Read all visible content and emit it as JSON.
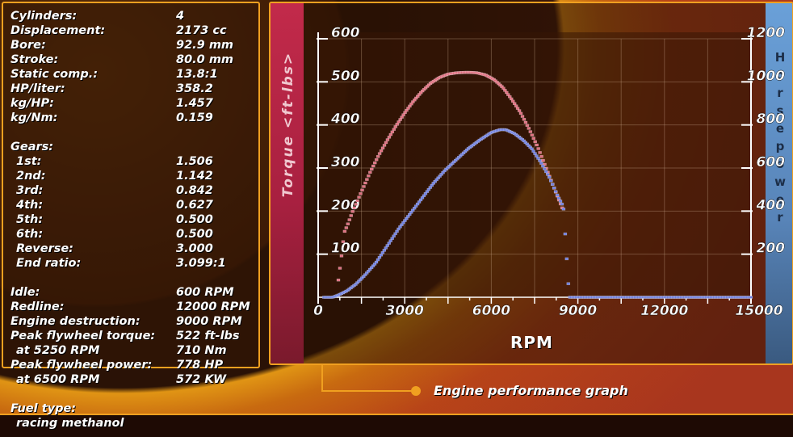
{
  "specs": [
    {
      "label": "Cylinders:",
      "value": "4"
    },
    {
      "label": "Displacement:",
      "value": "2173 cc"
    },
    {
      "label": "Bore:",
      "value": "92.9 mm"
    },
    {
      "label": "Stroke:",
      "value": "80.0 mm"
    },
    {
      "label": "Static comp.:",
      "value": "13.8:1"
    },
    {
      "label": "HP/liter:",
      "value": "358.2"
    },
    {
      "label": "kg/HP:",
      "value": "1.457"
    },
    {
      "label": "kg/Nm:",
      "value": "0.159"
    }
  ],
  "gears_label": "Gears:",
  "gears": [
    {
      "label": "1st:",
      "value": "1.506"
    },
    {
      "label": "2nd:",
      "value": "1.142"
    },
    {
      "label": "3rd:",
      "value": "0.842"
    },
    {
      "label": "4th:",
      "value": "0.627"
    },
    {
      "label": "5th:",
      "value": "0.500"
    },
    {
      "label": "6th:",
      "value": "0.500"
    },
    {
      "label": "Reverse:",
      "value": "3.000"
    },
    {
      "label": "End ratio:",
      "value": "3.099:1"
    }
  ],
  "engine": [
    {
      "label": "Idle:",
      "value": "600 RPM"
    },
    {
      "label": "Redline:",
      "value": "12000 RPM"
    },
    {
      "label": "Engine destruction:",
      "value": "9000 RPM"
    },
    {
      "label": "Peak flywheel torque:",
      "value": "522 ft-lbs"
    },
    {
      "label": "at 5250 RPM",
      "value": "710 Nm"
    },
    {
      "label": "Peak flywheel power:",
      "value": "778 HP"
    },
    {
      "label": "at 6500 RPM",
      "value": "572 KW"
    }
  ],
  "fuel": {
    "label": "Fuel type:",
    "value": "racing methanol"
  },
  "graph": {
    "left_axis_label": "Torque <ft-lbs>",
    "right_axis_label": "Horsepower",
    "x_label": "RPM",
    "caption": "Engine performance graph"
  },
  "colors": {
    "torque": "#e07080",
    "power": "#7080e0",
    "accent": "#f0a020"
  },
  "chart_data": {
    "type": "scatter",
    "title": "Engine performance graph",
    "xlabel": "RPM",
    "ylabel": "Torque <ft-lbs>",
    "y2label": "Horsepower",
    "xlim": [
      0,
      15000
    ],
    "ylim": [
      0,
      600
    ],
    "y2lim": [
      0,
      1200
    ],
    "x_ticks": [
      "0",
      "3000",
      "6000",
      "9000",
      "12000",
      "15000"
    ],
    "y_ticks": [
      "100",
      "200",
      "300",
      "400",
      "500",
      "600"
    ],
    "y2_ticks": [
      "200",
      "400",
      "600",
      "800",
      "1000",
      "1200"
    ],
    "grid": true,
    "series": [
      {
        "name": "Torque",
        "axis": "left",
        "x": [
          700,
          800,
          900,
          1000,
          1200,
          1500,
          1800,
          2100,
          2400,
          2700,
          3000,
          3300,
          3600,
          3900,
          4200,
          4500,
          4800,
          5100,
          5250,
          5500,
          5800,
          6100,
          6400,
          6700,
          7000,
          7300,
          7600,
          7900,
          8200,
          8500
        ],
        "y": [
          40,
          90,
          150,
          165,
          200,
          245,
          290,
          330,
          365,
          398,
          428,
          455,
          478,
          497,
          510,
          518,
          521,
          522,
          522,
          521,
          516,
          505,
          487,
          460,
          430,
          392,
          350,
          300,
          250,
          200
        ]
      },
      {
        "name": "Horsepower",
        "axis": "right",
        "x": [
          200,
          500,
          700,
          1000,
          1300,
          1600,
          2000,
          2400,
          2800,
          3200,
          3600,
          4000,
          4400,
          4800,
          5200,
          5600,
          6000,
          6300,
          6500,
          6800,
          7100,
          7400,
          7700,
          8000,
          8300,
          8500,
          8700,
          9500,
          11000,
          12500,
          14000,
          15000
        ],
        "y": [
          0,
          0,
          10,
          30,
          60,
          100,
          160,
          240,
          320,
          390,
          460,
          530,
          590,
          640,
          690,
          730,
          765,
          778,
          778,
          760,
          730,
          690,
          630,
          560,
          470,
          420,
          0,
          0,
          0,
          0,
          0,
          0
        ]
      }
    ]
  }
}
